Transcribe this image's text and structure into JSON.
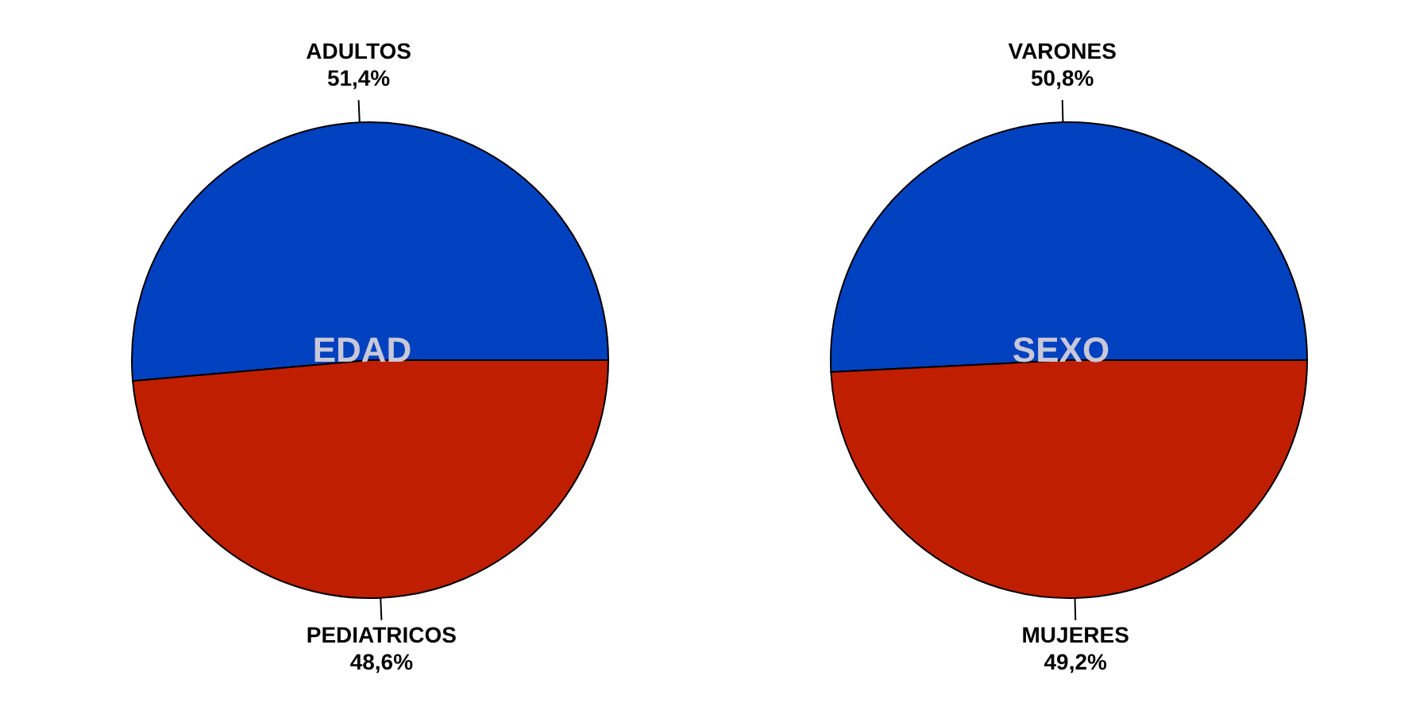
{
  "chart_data": [
    {
      "type": "pie",
      "title": "EDAD",
      "categories": [
        "ADULTOS",
        "PEDIATRICOS"
      ],
      "values": [
        51.4,
        48.6
      ],
      "value_labels": [
        "51,4%",
        "48,6%"
      ],
      "colors": [
        "#0041c0",
        "#c01e00"
      ]
    },
    {
      "type": "pie",
      "title": "SEXO",
      "categories": [
        "VARONES",
        "MUJERES"
      ],
      "values": [
        50.8,
        49.2
      ],
      "value_labels": [
        "50,8%",
        "49,2%"
      ],
      "colors": [
        "#0041c0",
        "#c01e00"
      ]
    }
  ]
}
